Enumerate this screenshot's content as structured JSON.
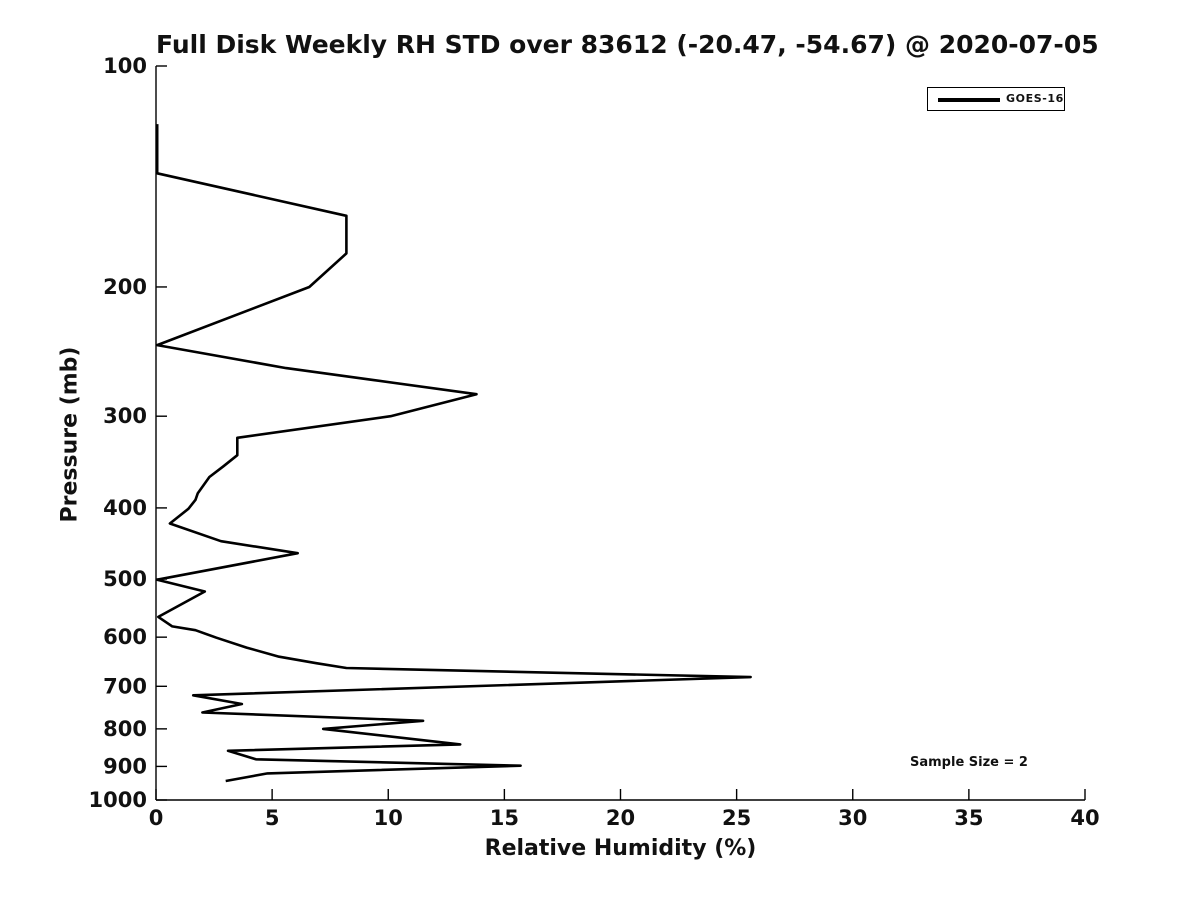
{
  "figure": {
    "title": "Full Disk Weekly RH STD over 83612 (-20.47, -54.67) @ 2020-07-05",
    "xlabel": "Relative Humidity (%)",
    "ylabel": "Pressure (mb)",
    "annotation": "Sample Size = 2",
    "legend_label": "GOES-16",
    "line_color": "#000000",
    "text_color": "#111111"
  },
  "chart_data": {
    "type": "line",
    "title": "Full Disk Weekly RH STD over 83612 (-20.47, -54.67) @ 2020-07-05",
    "xlabel": "Relative Humidity (%)",
    "ylabel": "Pressure (mb)",
    "xlim": [
      0,
      40
    ],
    "ylim": [
      100,
      1000
    ],
    "y_scale": "log",
    "y_inverted": true,
    "grid": false,
    "x_ticks": [
      0,
      5,
      10,
      15,
      20,
      25,
      30,
      35,
      40
    ],
    "y_ticks": [
      100,
      200,
      300,
      400,
      500,
      600,
      700,
      800,
      900,
      1000
    ],
    "legend_position": "top-right",
    "annotations": [
      "Sample Size = 2"
    ],
    "series": [
      {
        "name": "GOES-16",
        "color": "#000000",
        "x_units": "percent_rh_std",
        "y_units": "pressure_mb",
        "points": [
          [
            0.05,
            120
          ],
          [
            0.05,
            140
          ],
          [
            8.2,
            160
          ],
          [
            8.2,
            180
          ],
          [
            6.6,
            200
          ],
          [
            0.05,
            240
          ],
          [
            5.6,
            258
          ],
          [
            13.8,
            280
          ],
          [
            10.1,
            300
          ],
          [
            3.5,
            321
          ],
          [
            3.5,
            339
          ],
          [
            2.9,
            351
          ],
          [
            2.3,
            363
          ],
          [
            1.8,
            382
          ],
          [
            1.7,
            390
          ],
          [
            1.4,
            401
          ],
          [
            0.6,
            420
          ],
          [
            2.8,
            444
          ],
          [
            6.1,
            461
          ],
          [
            0.05,
            501
          ],
          [
            2.1,
            520
          ],
          [
            0.1,
            563
          ],
          [
            0.7,
            580
          ],
          [
            1.7,
            587
          ],
          [
            2.6,
            601
          ],
          [
            3.9,
            620
          ],
          [
            5.3,
            638
          ],
          [
            6.9,
            651
          ],
          [
            8.2,
            661
          ],
          [
            25.6,
            680
          ],
          [
            1.6,
            720
          ],
          [
            3.7,
            740
          ],
          [
            2.0,
            760
          ],
          [
            11.5,
            780
          ],
          [
            7.2,
            800
          ],
          [
            13.1,
            840
          ],
          [
            3.1,
            857
          ],
          [
            4.3,
            880
          ],
          [
            15.7,
            898
          ],
          [
            4.8,
            920
          ],
          [
            3.0,
            942
          ]
        ]
      }
    ]
  }
}
